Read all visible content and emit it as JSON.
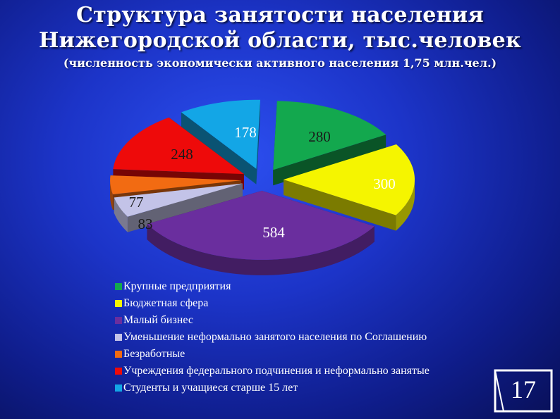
{
  "slide": {
    "title_line1": "Структура занятости населения",
    "title_line2": "Нижегородской области, тыс.человек",
    "subtitle": "(численность экономически активного населения 1,75 млн.чел.)",
    "page_number": "17"
  },
  "chart_data": {
    "type": "pie",
    "style": "3d-exploded",
    "legend_position": "bottom",
    "title": "Структура занятости населения Нижегородской области, тыс.человек",
    "slices": [
      {
        "label": "Крупные предприятия",
        "value": 280,
        "display": "280",
        "color": "#13a84e"
      },
      {
        "label": "Бюджетная сфера",
        "value": 300,
        "display": "300",
        "color": "#f5f500"
      },
      {
        "label": "Малый бизнес",
        "value": 584,
        "display": "584",
        "color": "#6a2e9e"
      },
      {
        "label": "Уменьшение неформально занятого населения  по Соглашению",
        "value": 83,
        "display": "83",
        "color": "#c3c3e8"
      },
      {
        "label": "Безработные",
        "value": 77,
        "display": "77",
        "color": "#f26b12"
      },
      {
        "label": "Учреждения федерального подчинения и неформально занятые",
        "value": 248,
        "display": "248",
        "color": "#ee0a0a"
      },
      {
        "label": "Студенты и учащиеся старше 15 лет",
        "value": 178,
        "display": "178",
        "color": "#13a6e6"
      }
    ]
  }
}
